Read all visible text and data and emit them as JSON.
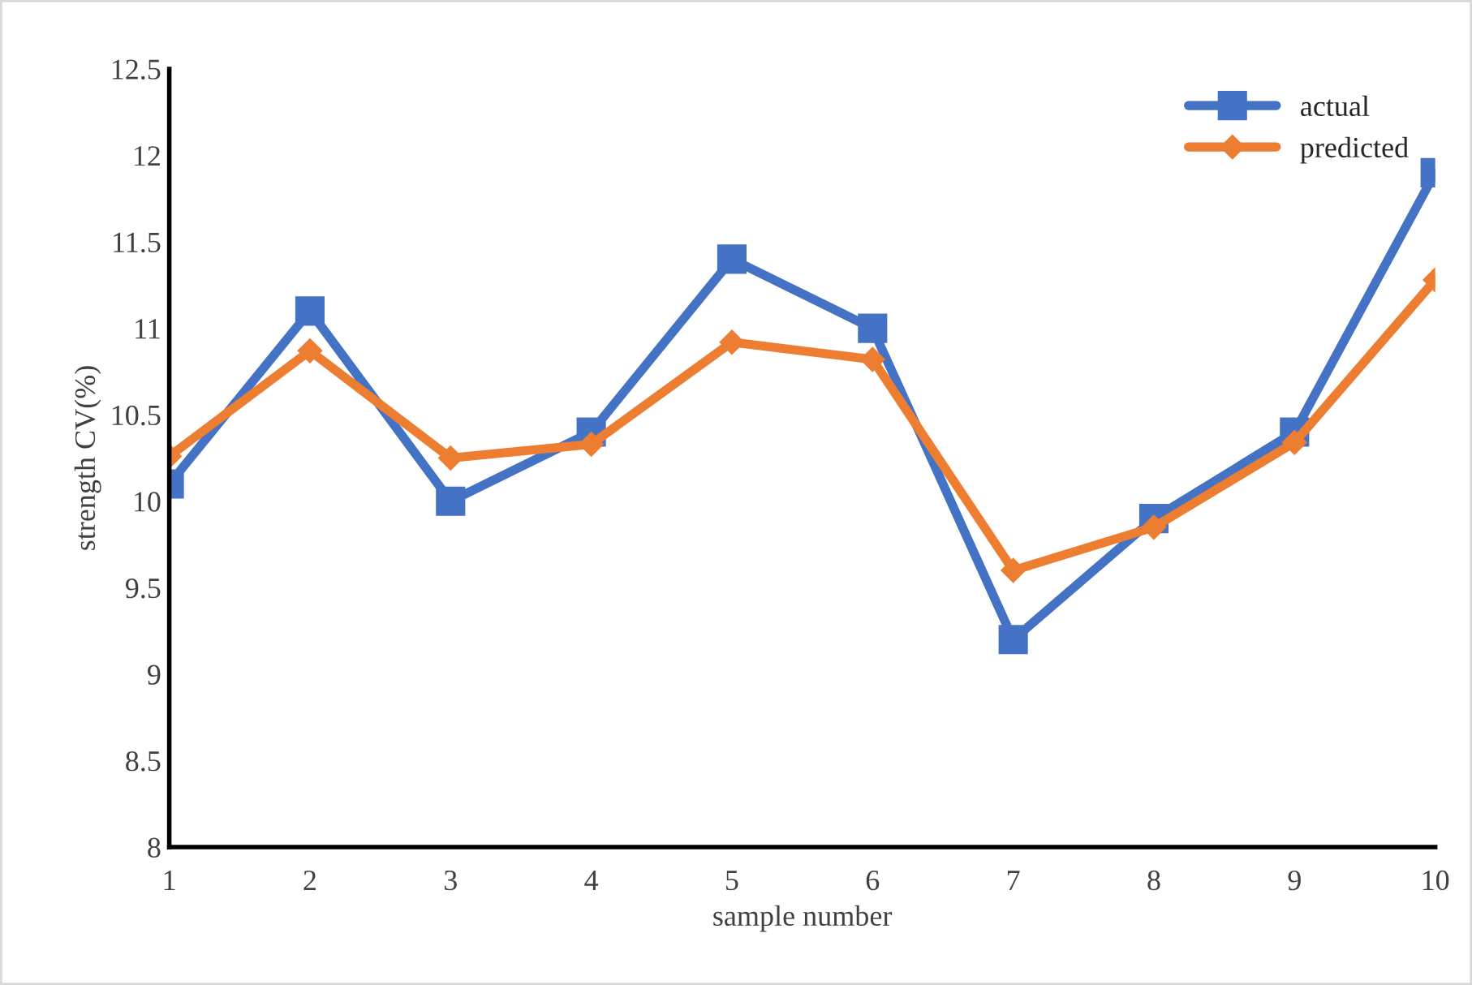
{
  "chart_data": {
    "type": "line",
    "xlabel": "sample number",
    "ylabel": "strength CV(%)",
    "categories": [
      "1",
      "2",
      "3",
      "4",
      "5",
      "6",
      "7",
      "8",
      "9",
      "10"
    ],
    "series": [
      {
        "name": "actual",
        "color": "#4472c4",
        "marker": "square",
        "values": [
          10.1,
          11.1,
          10.0,
          10.4,
          11.4,
          11.0,
          9.2,
          9.9,
          10.4,
          11.9
        ]
      },
      {
        "name": "predicted",
        "color": "#ed7d31",
        "marker": "diamond",
        "values": [
          10.26,
          10.87,
          10.25,
          10.33,
          10.92,
          10.82,
          9.6,
          9.85,
          10.34,
          11.28
        ]
      }
    ],
    "ylim": [
      8,
      12.5
    ],
    "yticks": [
      8,
      8.5,
      9,
      9.5,
      10,
      10.5,
      11,
      11.5,
      12,
      12.5
    ],
    "legend": "top right",
    "grid": false,
    "line_style": "solid"
  }
}
